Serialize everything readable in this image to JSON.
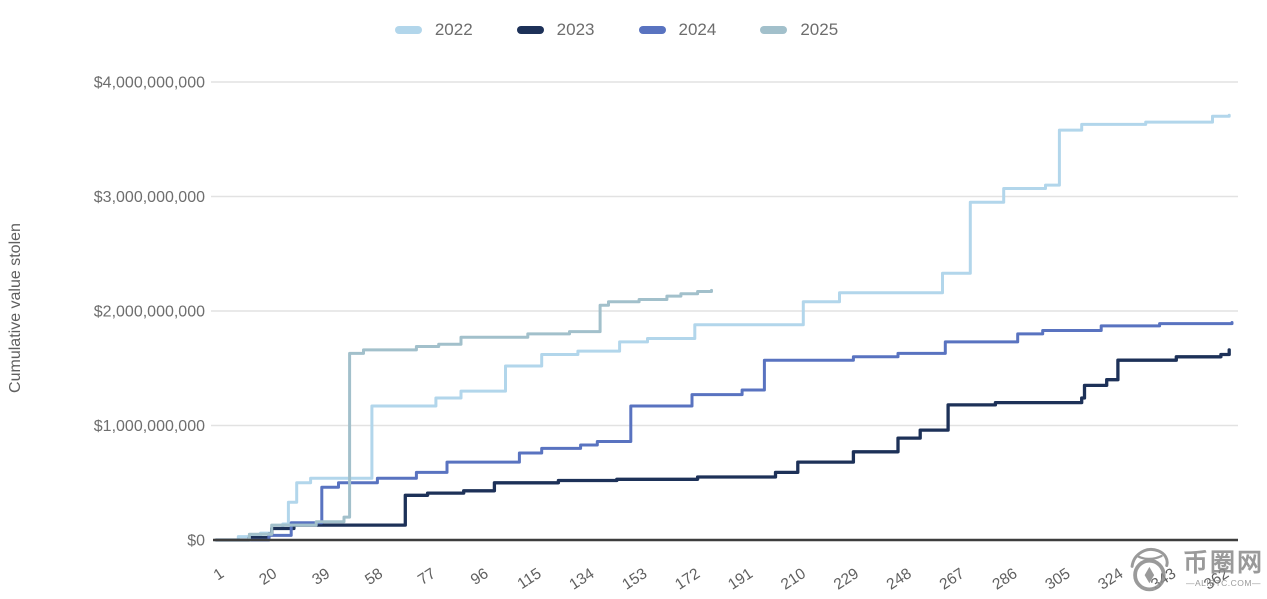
{
  "legend": {
    "items": [
      {
        "label": "2022",
        "color": "#b2d6eb"
      },
      {
        "label": "2023",
        "color": "#1d3158"
      },
      {
        "label": "2024",
        "color": "#5973c0"
      },
      {
        "label": "2025",
        "color": "#a2c0cb"
      }
    ]
  },
  "y_axis": {
    "title": "Cumulative value stolen"
  },
  "watermark": {
    "site_name": "币圈网",
    "domain_text": "—ALIBTC.COM—"
  },
  "chart_data": {
    "type": "line",
    "step_interpolation": true,
    "title": "",
    "xlabel": "",
    "ylabel": "Cumulative value stolen",
    "units": "USD (values in billions)",
    "xlim": [
      1,
      366
    ],
    "ylim_billions": [
      0,
      4
    ],
    "grid": "horizontal",
    "legend_position": "top",
    "x_ticks": [
      1,
      20,
      39,
      58,
      77,
      96,
      115,
      134,
      153,
      172,
      191,
      210,
      229,
      248,
      267,
      286,
      305,
      324,
      343,
      362
    ],
    "y_ticks_billions": [
      0,
      1,
      2,
      3,
      4
    ],
    "y_tick_labels": [
      "$0",
      "$1,000,000,000",
      "$2,000,000,000",
      "$3,000,000,000",
      "$4,000,000,000"
    ],
    "series": [
      {
        "name": "2022",
        "color": "#b2d6eb",
        "points": [
          [
            1,
            0
          ],
          [
            9,
            0.03
          ],
          [
            17,
            0.06
          ],
          [
            21,
            0.1
          ],
          [
            25,
            0.14
          ],
          [
            27,
            0.33
          ],
          [
            30,
            0.5
          ],
          [
            35,
            0.54
          ],
          [
            57,
            1.17
          ],
          [
            80,
            1.24
          ],
          [
            89,
            1.3
          ],
          [
            105,
            1.52
          ],
          [
            118,
            1.62
          ],
          [
            131,
            1.65
          ],
          [
            146,
            1.73
          ],
          [
            156,
            1.76
          ],
          [
            173,
            1.88
          ],
          [
            212,
            2.08
          ],
          [
            225,
            2.16
          ],
          [
            262,
            2.33
          ],
          [
            272,
            2.95
          ],
          [
            284,
            3.07
          ],
          [
            299,
            3.1
          ],
          [
            304,
            3.58
          ],
          [
            312,
            3.63
          ],
          [
            335,
            3.65
          ],
          [
            359,
            3.7
          ],
          [
            365,
            3.71
          ]
        ]
      },
      {
        "name": "2023",
        "color": "#1d3158",
        "points": [
          [
            1,
            0
          ],
          [
            13,
            0.02
          ],
          [
            20,
            0.05
          ],
          [
            21,
            0.1
          ],
          [
            29,
            0.13
          ],
          [
            69,
            0.39
          ],
          [
            77,
            0.41
          ],
          [
            90,
            0.43
          ],
          [
            101,
            0.5
          ],
          [
            124,
            0.52
          ],
          [
            145,
            0.53
          ],
          [
            174,
            0.55
          ],
          [
            202,
            0.59
          ],
          [
            210,
            0.68
          ],
          [
            230,
            0.77
          ],
          [
            246,
            0.89
          ],
          [
            254,
            0.96
          ],
          [
            264,
            1.18
          ],
          [
            281,
            1.2
          ],
          [
            312,
            1.24
          ],
          [
            313,
            1.35
          ],
          [
            321,
            1.4
          ],
          [
            325,
            1.57
          ],
          [
            346,
            1.6
          ],
          [
            362,
            1.62
          ],
          [
            365,
            1.66
          ]
        ]
      },
      {
        "name": "2024",
        "color": "#5973c0",
        "points": [
          [
            1,
            0
          ],
          [
            20,
            0.04
          ],
          [
            28,
            0.15
          ],
          [
            39,
            0.46
          ],
          [
            45,
            0.5
          ],
          [
            59,
            0.54
          ],
          [
            73,
            0.59
          ],
          [
            84,
            0.68
          ],
          [
            110,
            0.76
          ],
          [
            118,
            0.8
          ],
          [
            132,
            0.83
          ],
          [
            138,
            0.86
          ],
          [
            150,
            1.17
          ],
          [
            172,
            1.27
          ],
          [
            190,
            1.31
          ],
          [
            198,
            1.57
          ],
          [
            230,
            1.6
          ],
          [
            246,
            1.63
          ],
          [
            263,
            1.73
          ],
          [
            289,
            1.8
          ],
          [
            298,
            1.83
          ],
          [
            319,
            1.87
          ],
          [
            340,
            1.89
          ],
          [
            366,
            1.9
          ]
        ]
      },
      {
        "name": "2025",
        "color": "#a2c0cb",
        "points": [
          [
            1,
            0
          ],
          [
            13,
            0.05
          ],
          [
            21,
            0.13
          ],
          [
            37,
            0.16
          ],
          [
            47,
            0.2
          ],
          [
            49,
            1.63
          ],
          [
            54,
            1.66
          ],
          [
            73,
            1.69
          ],
          [
            81,
            1.71
          ],
          [
            89,
            1.77
          ],
          [
            113,
            1.8
          ],
          [
            128,
            1.82
          ],
          [
            139,
            2.05
          ],
          [
            142,
            2.08
          ],
          [
            153,
            2.1
          ],
          [
            163,
            2.13
          ],
          [
            168,
            2.15
          ],
          [
            174,
            2.17
          ],
          [
            179,
            2.18
          ]
        ]
      }
    ]
  }
}
